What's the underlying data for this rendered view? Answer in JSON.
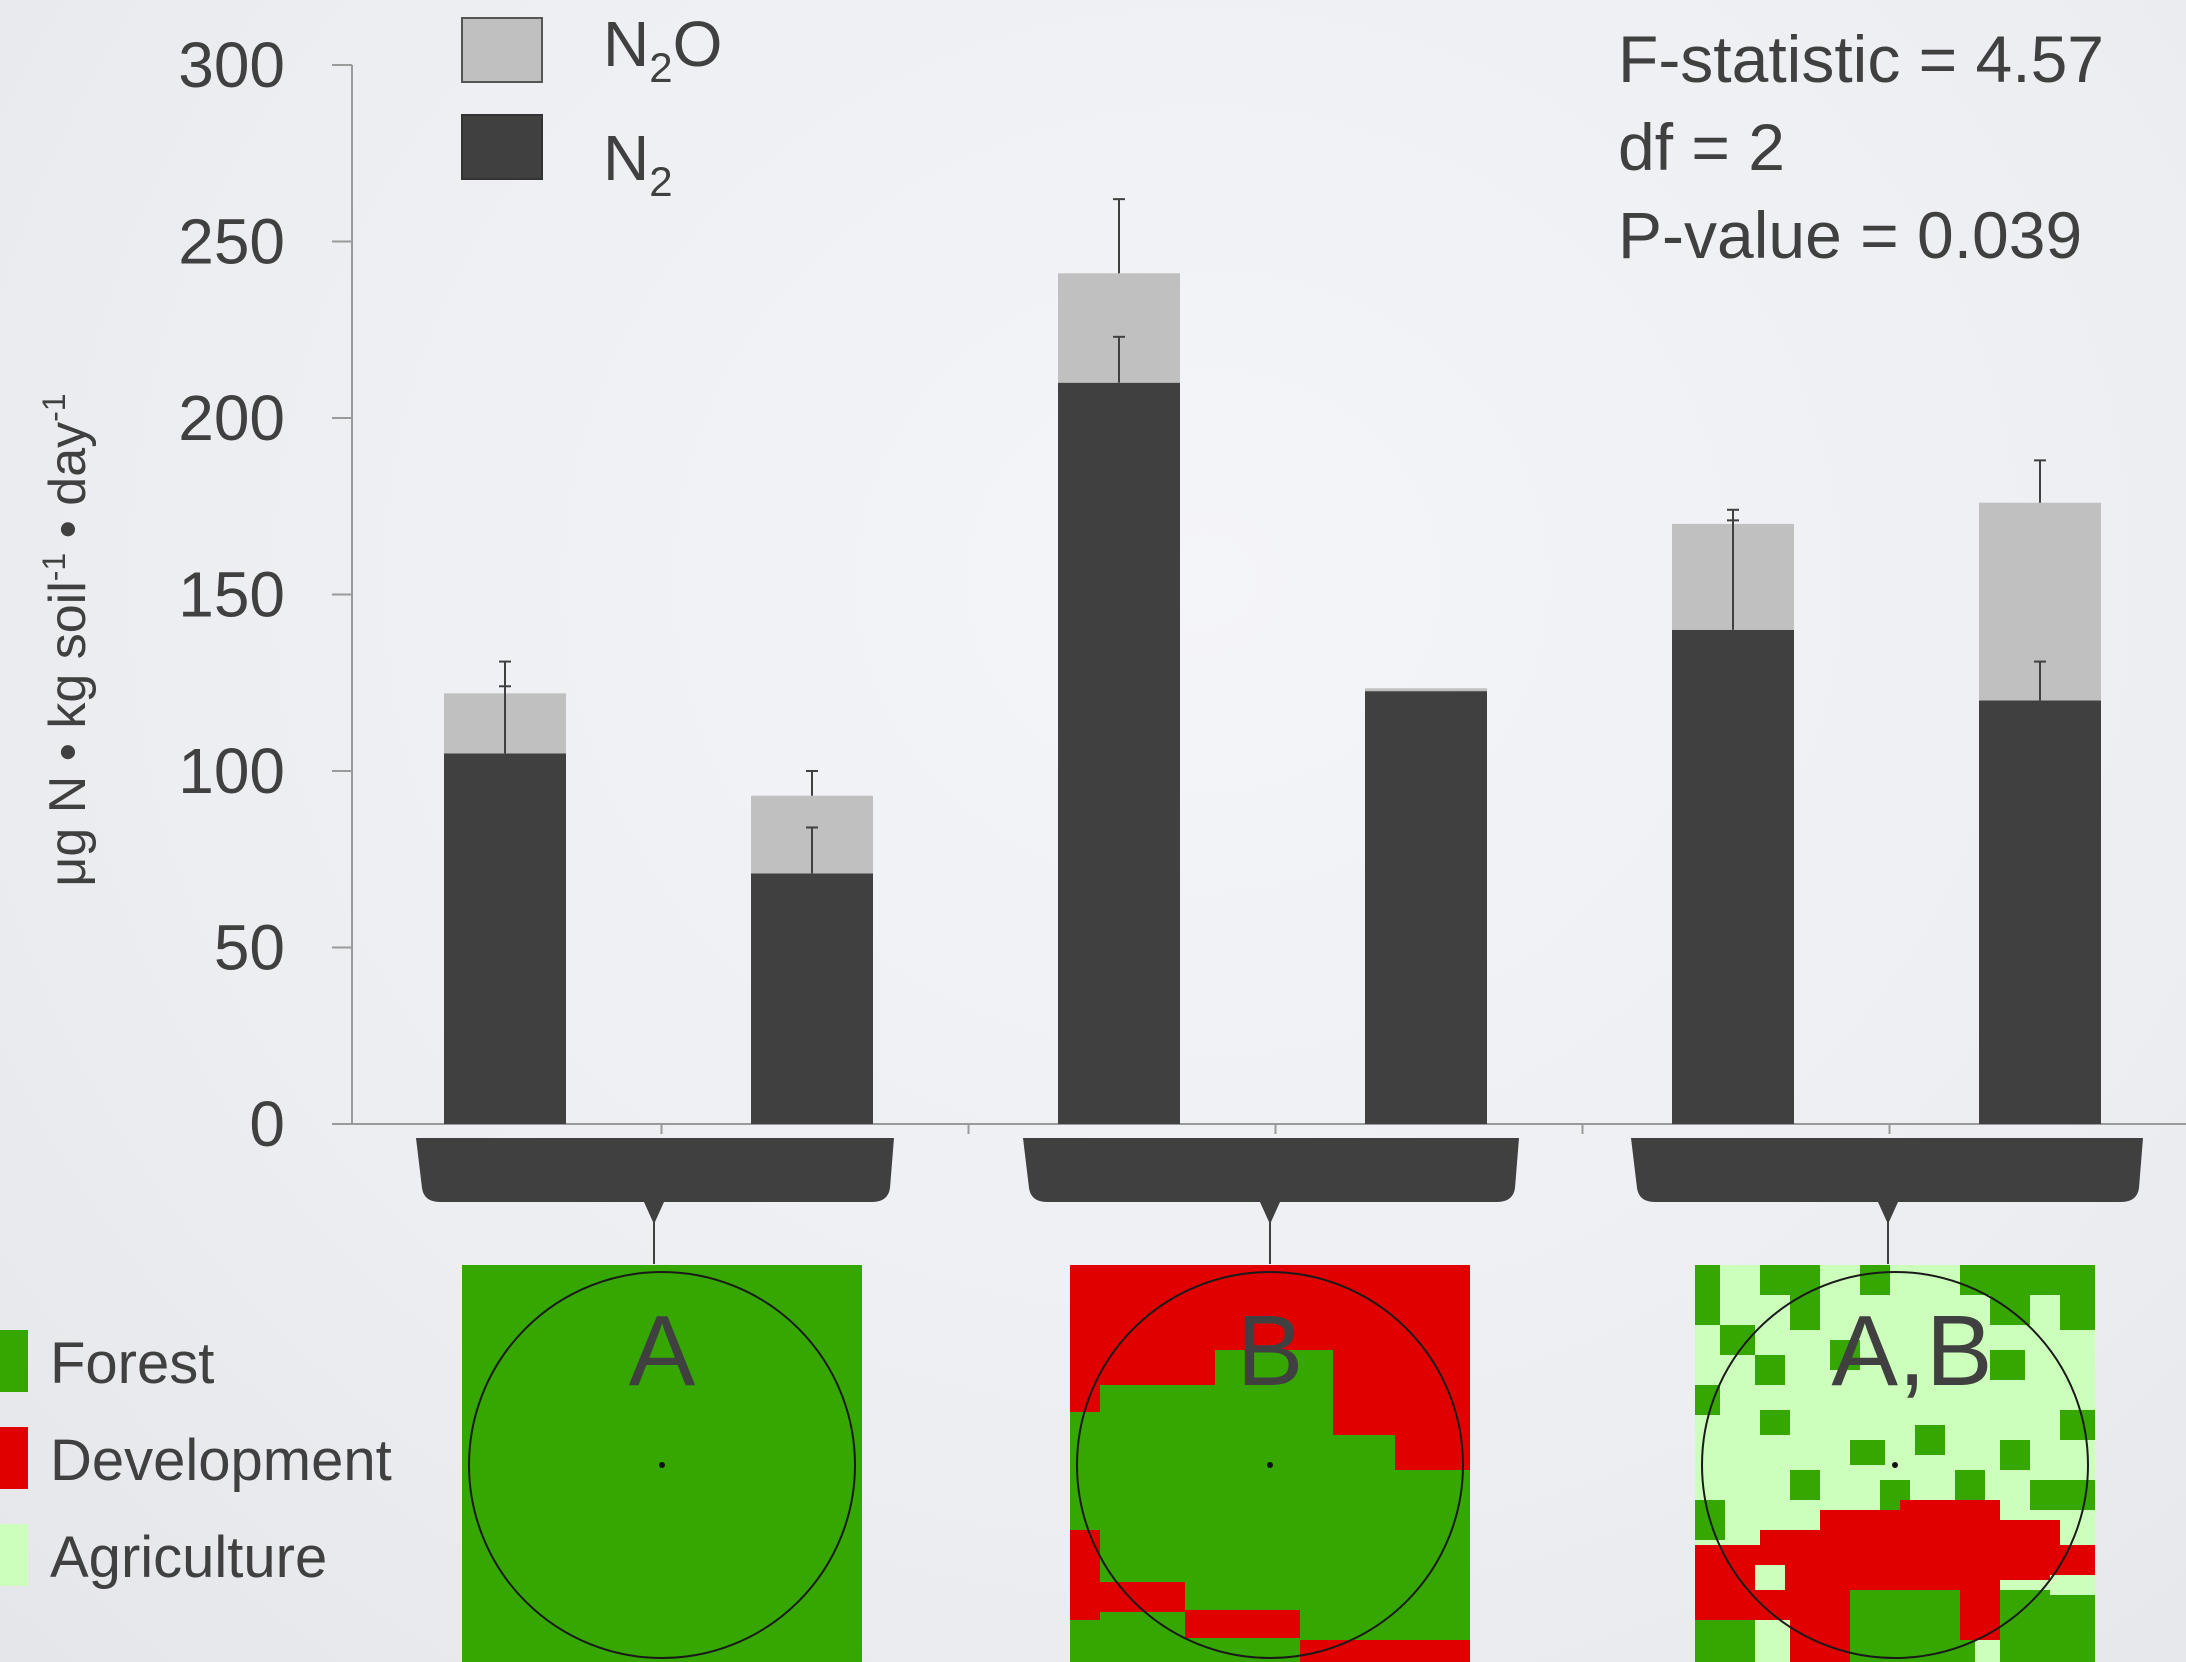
{
  "chart_data": {
    "type": "bar",
    "stacked": true,
    "ylabel": "μg N • kg soil",
    "ylabel_sup1": "-1",
    "ylabel_mid": " • day",
    "ylabel_sup2": "-1",
    "ylim": [
      0,
      300
    ],
    "yticks": [
      0,
      50,
      100,
      150,
      200,
      250,
      300
    ],
    "categories": [
      "",
      "",
      "",
      "",
      "",
      ""
    ],
    "series": [
      {
        "name": "N2",
        "name_base": "N",
        "name_sub": "2",
        "name_tail": "",
        "color": "#404040",
        "values": [
          105,
          71,
          210,
          123,
          140,
          120
        ],
        "errors": [
          19,
          13,
          13,
          0,
          34,
          11
        ]
      },
      {
        "name": "N2O",
        "name_base": "N",
        "name_sub": "2",
        "name_tail": "O",
        "color": "#c0c0c0",
        "values": [
          17,
          22,
          31,
          0,
          30,
          56
        ],
        "errors": [
          9,
          7,
          21,
          0,
          1,
          12
        ]
      }
    ],
    "legend_position": "top-left",
    "stats": [
      "F-statistic = 4.57",
      "df = 2",
      "P-value = 0.039"
    ],
    "groups": [
      {
        "label": "A",
        "bars": [
          0,
          1
        ]
      },
      {
        "label": "B",
        "bars": [
          2,
          3
        ]
      },
      {
        "label": "A,B",
        "bars": [
          4,
          5
        ]
      }
    ],
    "landuse_legend": [
      {
        "label": "Forest",
        "color": "#36a600"
      },
      {
        "label": "Development",
        "color": "#e10000"
      },
      {
        "label": "Agriculture",
        "color": "#ccffbb"
      }
    ]
  }
}
